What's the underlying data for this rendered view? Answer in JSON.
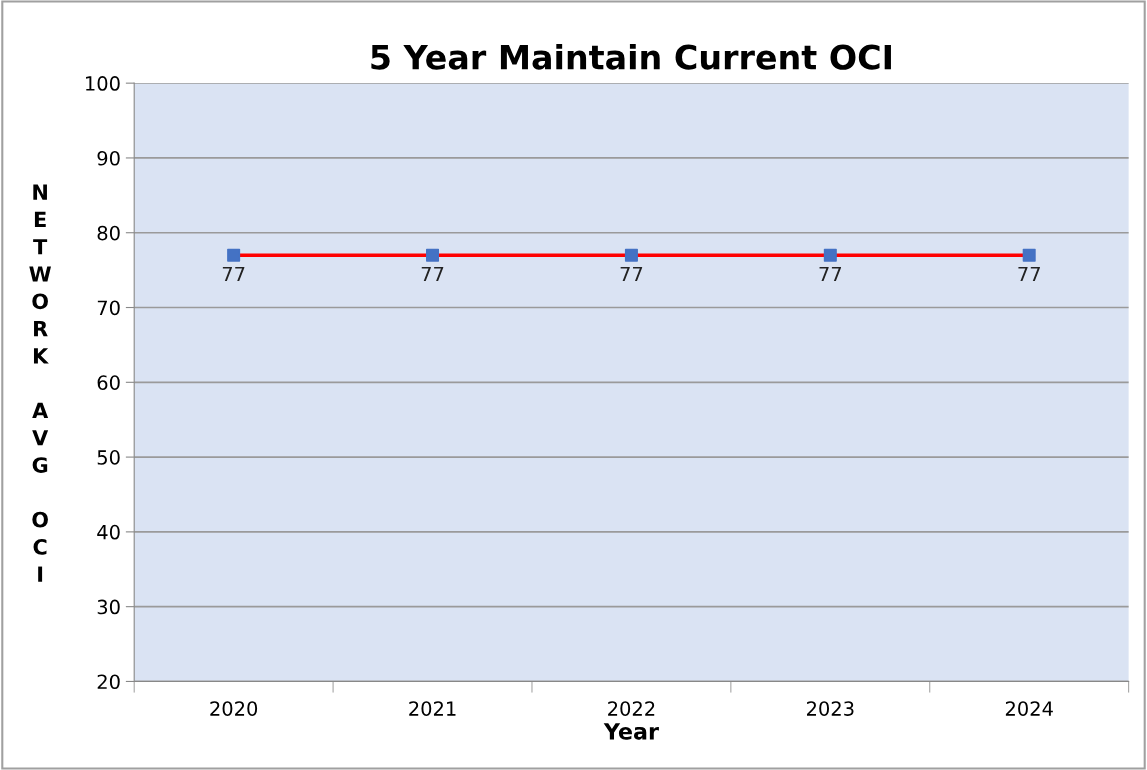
{
  "chart_data": {
    "type": "line",
    "title": "5 Year Maintain Current OCI",
    "xlabel": "Year",
    "ylabel": "NETWORK AVG OCI",
    "categories": [
      "2020",
      "2021",
      "2022",
      "2023",
      "2024"
    ],
    "series": [
      {
        "color": "#ff0000",
        "colors": [
          "#4472c4",
          "#4472c4",
          "#4472c4",
          "#4472c4",
          "#4472c4"
        ],
        "values": [
          77,
          77,
          77,
          77,
          77
        ]
      }
    ],
    "ylim": [
      20,
      100
    ],
    "yticks": [
      20,
      30,
      40,
      50,
      60,
      70,
      80,
      90,
      100
    ],
    "grid": "y",
    "marker": "square",
    "line_style": "solid",
    "data_labels": true
  }
}
